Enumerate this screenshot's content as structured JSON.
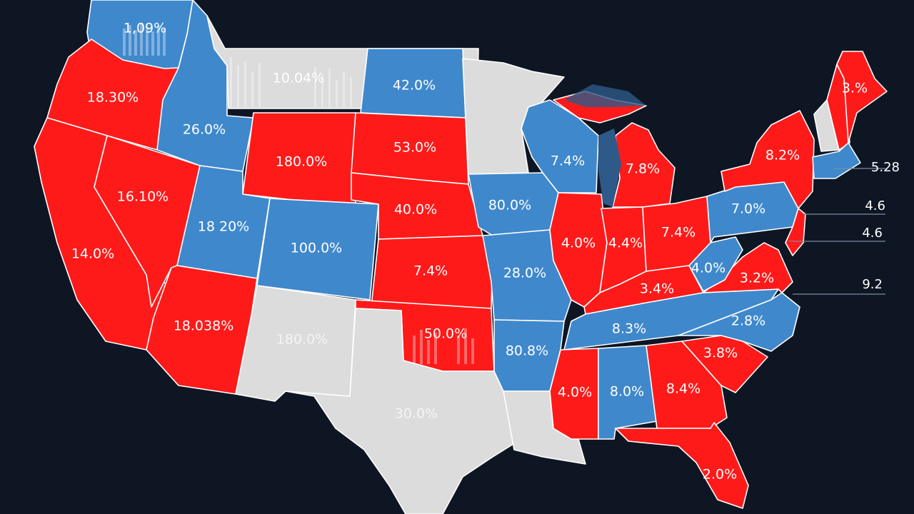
{
  "colors": {
    "background": "#0e1624",
    "red": "#ff1a1a",
    "blue": "#3f88cc",
    "gray": "#dcdcdc",
    "border": "#ffffff",
    "lake": "#2d5a88"
  },
  "states": {
    "wa": {
      "label": "1,09%",
      "fill": "blue"
    },
    "or": {
      "label": "18.30%",
      "fill": "red"
    },
    "ca": {
      "label": "14.0%",
      "fill": "red"
    },
    "nv": {
      "label": "16.10%",
      "fill": "red"
    },
    "id": {
      "label": "26.0%",
      "fill": "blue"
    },
    "mt": {
      "label": "10.04%",
      "fill": "gray"
    },
    "wy": {
      "label": "180.0%",
      "fill": "red"
    },
    "ut": {
      "label": "18 20%",
      "fill": "blue"
    },
    "az": {
      "label": "18.038%",
      "fill": "red"
    },
    "co": {
      "label": "100.0%",
      "fill": "blue"
    },
    "nm": {
      "label": "180.0%",
      "fill": "gray"
    },
    "nd": {
      "label": "42.0%",
      "fill": "blue"
    },
    "sd": {
      "label": "53.0%",
      "fill": "red"
    },
    "ne": {
      "label": "40.0%",
      "fill": "red"
    },
    "ks": {
      "label": "7.4%",
      "fill": "red"
    },
    "ok": {
      "label": "50.0%",
      "fill": "red"
    },
    "tx": {
      "label": "30.0%",
      "fill": "gray"
    },
    "mn": {
      "label": "",
      "fill": "gray"
    },
    "ia": {
      "label": "80.0%",
      "fill": "blue"
    },
    "mo": {
      "label": "28.0%",
      "fill": "blue"
    },
    "ar": {
      "label": "80.8%",
      "fill": "blue"
    },
    "la": {
      "label": "",
      "fill": "gray"
    },
    "wi": {
      "label": "7.4%",
      "fill": "blue"
    },
    "il": {
      "label": "4.0%",
      "fill": "red"
    },
    "mi": {
      "label": "7.8%",
      "fill": "red"
    },
    "in": {
      "label": "4.4%",
      "fill": "red"
    },
    "oh": {
      "label": "7.4%",
      "fill": "red"
    },
    "ky": {
      "label": "3.4%",
      "fill": "red"
    },
    "tn": {
      "label": "8.3%",
      "fill": "blue"
    },
    "ms": {
      "label": "4.0%",
      "fill": "red"
    },
    "al": {
      "label": "8.0%",
      "fill": "blue"
    },
    "ga": {
      "label": "8.4%",
      "fill": "red"
    },
    "fl": {
      "label": "2.0%",
      "fill": "red"
    },
    "sc": {
      "label": "3.8%",
      "fill": "red"
    },
    "nc": {
      "label": "2.8%",
      "fill": "blue"
    },
    "va": {
      "label": "3.2%",
      "fill": "red"
    },
    "wv": {
      "label": "4.0%",
      "fill": "blue"
    },
    "pa": {
      "label": "7.0%",
      "fill": "blue"
    },
    "ny": {
      "label": "8.2%",
      "fill": "red"
    },
    "me": {
      "label": "3.%",
      "fill": "red"
    },
    "vt": {
      "label": "",
      "fill": "gray"
    },
    "nh": {
      "label": "",
      "fill": "red"
    },
    "ma": {
      "label": "",
      "fill": "blue"
    },
    "nj": {
      "label": "",
      "fill": "red"
    }
  },
  "side_labels": [
    "5.28",
    "4.6",
    "4.6",
    "9.2"
  ]
}
